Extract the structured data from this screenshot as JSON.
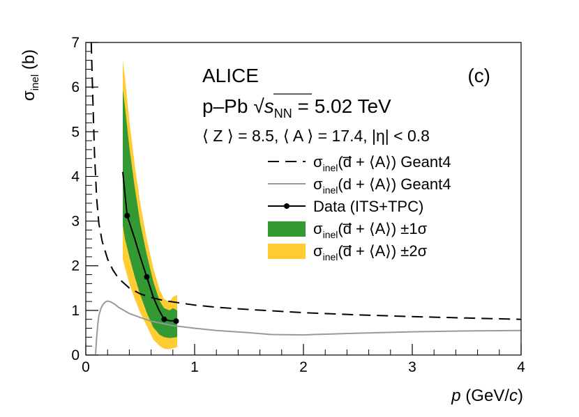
{
  "chart_data": {
    "type": "line",
    "panel_label": "(c)",
    "xlabel": {
      "var": "p",
      "open": " (GeV/",
      "unit_var": "c",
      "close": ")"
    },
    "ylabel": {
      "sym": "σ",
      "sub": "inel",
      "unit": " (b)"
    },
    "xlim": [
      0,
      4
    ],
    "ylim": [
      0,
      7
    ],
    "xticks": [
      0,
      1,
      2,
      3,
      4
    ],
    "yticks": [
      0,
      1,
      2,
      3,
      4,
      5,
      6,
      7
    ],
    "annotations": {
      "experiment": "ALICE",
      "system_prefix": "p–Pb",
      "sqrt": "√",
      "s_var": "s",
      "s_sub": "NN",
      "energy": " = 5.02 TeV",
      "selection": "⟨ Z ⟩ = 8.5, ⟨ A ⟩ = 17.4, |η| < 0.8"
    },
    "legend": {
      "anti_geant": {
        "sym": "σ",
        "sub": "inel",
        "body": "(d̅ + ⟨A⟩) Geant4"
      },
      "d_geant": {
        "sym": "σ",
        "sub": "inel",
        "body": "(d + ⟨A⟩) Geant4"
      },
      "data": {
        "text": "Data (ITS+TPC)"
      },
      "band1": {
        "sym": "σ",
        "sub": "inel",
        "body": "(d̅ + ⟨A⟩) ±1σ"
      },
      "band2": {
        "sym": "σ",
        "sub": "inel",
        "body": "(d̅ + ⟨A⟩) ±2σ"
      }
    },
    "colors": {
      "band1": "#339933",
      "band2": "#ffcc33",
      "geant_d": "#999999",
      "line": "#000000"
    },
    "series": [
      {
        "name": "antideuteron_geant4",
        "style": "dashed",
        "x": [
          0.05,
          0.06,
          0.07,
          0.08,
          0.1,
          0.12,
          0.15,
          0.2,
          0.25,
          0.3,
          0.4,
          0.5,
          0.6,
          0.7,
          0.8,
          1.0,
          1.2,
          1.5,
          2.0,
          2.5,
          3.0,
          3.5,
          4.0
        ],
        "y": [
          7.0,
          6.1,
          5.3,
          4.5,
          3.5,
          2.95,
          2.55,
          2.15,
          1.9,
          1.72,
          1.5,
          1.37,
          1.29,
          1.23,
          1.19,
          1.12,
          1.07,
          1.02,
          0.95,
          0.9,
          0.86,
          0.83,
          0.8
        ]
      },
      {
        "name": "deuteron_geant4",
        "style": "solid",
        "x": [
          0.09,
          0.1,
          0.11,
          0.12,
          0.14,
          0.16,
          0.18,
          0.2,
          0.23,
          0.27,
          0.3,
          0.4,
          0.5,
          0.6,
          0.8,
          1.0,
          1.2,
          1.5,
          1.7,
          2.0,
          2.1,
          2.5,
          3.0,
          3.5,
          4.0
        ],
        "y": [
          0.02,
          0.4,
          0.7,
          0.88,
          1.05,
          1.14,
          1.19,
          1.21,
          1.19,
          1.13,
          1.07,
          0.93,
          0.84,
          0.76,
          0.66,
          0.6,
          0.55,
          0.5,
          0.46,
          0.45,
          0.46,
          0.49,
          0.52,
          0.54,
          0.55
        ]
      },
      {
        "name": "data_its_tpc",
        "style": "solid-markers",
        "x": [
          0.34,
          0.38,
          0.45,
          0.5,
          0.56,
          0.62,
          0.67,
          0.72,
          0.77,
          0.83
        ],
        "y": [
          4.1,
          3.12,
          2.6,
          2.2,
          1.75,
          1.3,
          1.02,
          0.8,
          0.77,
          0.76
        ],
        "markers": {
          "x": [
            0.38,
            0.56,
            0.72,
            0.83
          ],
          "y": [
            3.12,
            1.75,
            0.8,
            0.76
          ]
        }
      },
      {
        "name": "band_2sigma",
        "x": [
          0.34,
          0.36,
          0.4,
          0.45,
          0.5,
          0.56,
          0.62,
          0.68,
          0.72,
          0.77,
          0.8,
          0.84
        ],
        "upper": [
          6.6,
          6.2,
          5.25,
          4.25,
          3.4,
          2.6,
          1.95,
          1.45,
          1.25,
          1.2,
          1.3,
          1.35
        ],
        "lower": [
          2.15,
          1.95,
          1.6,
          1.25,
          0.95,
          0.65,
          0.35,
          0.2,
          0.14,
          0.13,
          0.15,
          0.18
        ]
      },
      {
        "name": "band_1sigma",
        "x": [
          0.34,
          0.36,
          0.4,
          0.45,
          0.5,
          0.56,
          0.62,
          0.68,
          0.72,
          0.77,
          0.8,
          0.84
        ],
        "upper": [
          5.95,
          5.55,
          4.65,
          3.75,
          2.95,
          2.25,
          1.65,
          1.2,
          1.05,
          1.0,
          1.05,
          1.0
        ],
        "lower": [
          2.9,
          2.6,
          2.2,
          1.75,
          1.35,
          0.95,
          0.62,
          0.45,
          0.4,
          0.38,
          0.39,
          0.4
        ]
      }
    ]
  }
}
